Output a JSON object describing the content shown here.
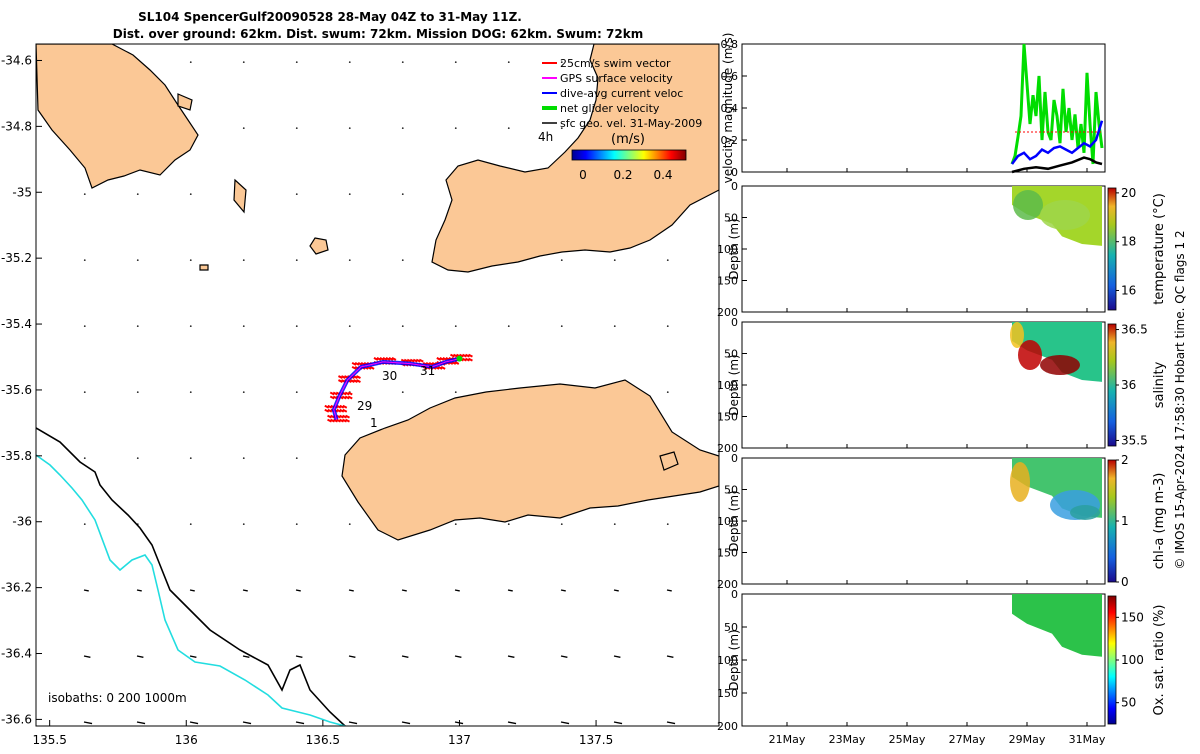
{
  "title": {
    "line1": "SL104 SpencerGulf20090528 28-May 04Z to 31-May 11Z.",
    "line2": "Dist. over ground: 62km. Dist. swum: 72km. Mission DOG: 62km. Swum: 72km"
  },
  "side_text": "© IMOS 15-Apr-2024 17:58:30 Hobart time. QC flags 1  2",
  "colors": {
    "land": "#fbc896",
    "coast": "#000000",
    "isobath_200": "#000000",
    "isobath_1000": "#22dde0",
    "swim": "#ff0000",
    "gps": "#ff00ff",
    "current": "#0000ff",
    "net": "#00dd00",
    "geo": "#000000"
  },
  "chart_data": [
    {
      "type": "scatter",
      "xlim": [
        135.45,
        137.95
      ],
      "ylim": [
        -36.62,
        -34.55
      ],
      "xticks": [
        "135.5",
        "136",
        "136.5",
        "137",
        "137.5"
      ],
      "yticks": [
        "-34.6",
        "-34.8",
        "-35",
        "-35.2",
        "-35.4",
        "-35.6",
        "-35.8",
        "-36",
        "-36.2",
        "-36.4",
        "-36.6"
      ],
      "legend": [
        {
          "label": "25cm/s swim vector",
          "color": "#ff0000"
        },
        {
          "label": "GPS surface velocity",
          "color": "#ff00ff"
        },
        {
          "label": "dive-avg current veloc",
          "color": "#0000ff"
        },
        {
          "label": "net glider velocity",
          "color": "#00dd00"
        },
        {
          "label": "sfc geo. vel. 31-May-2009",
          "color": "#000000"
        }
      ],
      "legend_position": "top-right",
      "interval_label": "4h",
      "colorbar": {
        "title": "(m/s)",
        "ticks": [
          "0",
          "0.2",
          "0.4"
        ],
        "range": [
          0,
          0.5
        ]
      },
      "isobath_label": "isobaths: 0   200   1000m",
      "track_day_labels": [
        "30",
        "31",
        "29",
        "1"
      ],
      "track": [
        [
          136.55,
          -35.69
        ],
        [
          136.54,
          -35.66
        ],
        [
          136.56,
          -35.62
        ],
        [
          136.59,
          -35.57
        ],
        [
          136.64,
          -35.53
        ],
        [
          136.72,
          -35.515
        ],
        [
          136.82,
          -35.52
        ],
        [
          136.9,
          -35.53
        ],
        [
          136.95,
          -35.515
        ],
        [
          137.0,
          -35.505
        ]
      ]
    },
    {
      "type": "line",
      "ylabel": "velocity magnitude (m/s)",
      "ylim": [
        0,
        0.8
      ],
      "yticks": [
        "0",
        "0.2",
        "0.4",
        "0.6",
        "0.8"
      ],
      "series": [
        {
          "color": "#00dd00",
          "x": [
            28.5,
            28.6,
            28.7,
            28.8,
            28.9,
            29.0,
            29.1,
            29.2,
            29.3,
            29.4,
            29.5,
            29.6,
            29.7,
            29.8,
            29.9,
            30.0,
            30.1,
            30.2,
            30.3,
            30.4,
            30.5,
            30.6,
            30.7,
            30.8,
            30.9,
            31.0,
            31.1,
            31.2,
            31.3,
            31.4,
            31.5
          ],
          "y": [
            0.05,
            0.1,
            0.22,
            0.35,
            0.8,
            0.55,
            0.3,
            0.48,
            0.35,
            0.6,
            0.2,
            0.5,
            0.25,
            0.2,
            0.45,
            0.35,
            0.18,
            0.52,
            0.25,
            0.4,
            0.2,
            0.36,
            0.15,
            0.3,
            0.12,
            0.62,
            0.3,
            0.05,
            0.5,
            0.3,
            0.15
          ]
        },
        {
          "color": "#ff0000",
          "x": [
            28.6,
            31.5
          ],
          "y": [
            0.25,
            0.25
          ]
        },
        {
          "color": "#0000ff",
          "x": [
            28.5,
            28.7,
            28.9,
            29.1,
            29.3,
            29.5,
            29.7,
            29.9,
            30.1,
            30.3,
            30.5,
            30.7,
            30.9,
            31.1,
            31.3,
            31.5
          ],
          "y": [
            0.05,
            0.1,
            0.12,
            0.08,
            0.1,
            0.14,
            0.12,
            0.15,
            0.16,
            0.14,
            0.12,
            0.15,
            0.18,
            0.16,
            0.2,
            0.32
          ]
        },
        {
          "color": "#000000",
          "x": [
            28.5,
            28.9,
            29.3,
            29.7,
            30.1,
            30.5,
            30.9,
            31.1,
            31.3,
            31.5
          ],
          "y": [
            0.0,
            0.02,
            0.03,
            0.02,
            0.04,
            0.06,
            0.09,
            0.08,
            0.06,
            0.05
          ]
        }
      ]
    },
    {
      "type": "heatmap",
      "ylabel": "Depth (m)",
      "ylim": [
        200,
        0
      ],
      "yticks": [
        "0",
        "50",
        "100",
        "150",
        "200"
      ],
      "colorbar_label": "temperature (°C)",
      "colorbar_ticks": [
        "16",
        "18",
        "20"
      ],
      "crange": [
        15.2,
        20.2
      ]
    },
    {
      "type": "heatmap",
      "ylabel": "Depth (m)",
      "ylim": [
        200,
        0
      ],
      "yticks": [
        "0",
        "50",
        "100",
        "150",
        "200"
      ],
      "colorbar_label": "salinity",
      "colorbar_ticks": [
        "35.5",
        "36",
        "36.5"
      ],
      "crange": [
        35.45,
        36.55
      ]
    },
    {
      "type": "heatmap",
      "ylabel": "Depth (m)",
      "ylim": [
        200,
        0
      ],
      "yticks": [
        "0",
        "50",
        "100",
        "150",
        "200"
      ],
      "colorbar_label": "chl-a (mg m-3)",
      "colorbar_ticks": [
        "0",
        "1",
        "2"
      ],
      "crange": [
        0,
        2
      ]
    },
    {
      "type": "heatmap",
      "ylabel": "Depth (m)",
      "ylim": [
        200,
        0
      ],
      "yticks": [
        "0",
        "50",
        "100",
        "150",
        "200"
      ],
      "colorbar_label": "Ox. sat. ratio (%)",
      "colorbar_ticks": [
        "50",
        "100",
        "150"
      ],
      "crange": [
        25,
        175
      ]
    }
  ],
  "x_dates": [
    "21May",
    "23May",
    "25May",
    "27May",
    "29May",
    "31May"
  ],
  "x_date_values": [
    21,
    23,
    25,
    27,
    29,
    31
  ],
  "x_date_range": [
    19.5,
    31.6
  ]
}
